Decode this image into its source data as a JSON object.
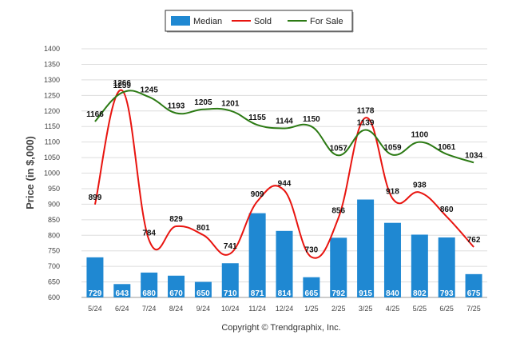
{
  "chart_data": {
    "type": "bar",
    "categories": [
      "5/24",
      "6/24",
      "7/24",
      "8/24",
      "9/24",
      "10/24",
      "11/24",
      "12/24",
      "1/25",
      "2/25",
      "3/25",
      "4/25",
      "5/25",
      "6/25",
      "7/25"
    ],
    "series": [
      {
        "name": "Median",
        "kind": "bar",
        "color": "#1f88d2",
        "values": [
          729,
          643,
          680,
          670,
          650,
          710,
          871,
          814,
          665,
          792,
          915,
          840,
          802,
          793,
          675
        ]
      },
      {
        "name": "Sold",
        "kind": "line",
        "color": "#e8140f",
        "values": [
          899,
          1266,
          784,
          829,
          801,
          741,
          909,
          944,
          730,
          856,
          1178,
          918,
          938,
          860,
          762
        ]
      },
      {
        "name": "For Sale",
        "kind": "line",
        "color": "#2c7a14",
        "values": [
          1166,
          1259,
          1245,
          1193,
          1205,
          1201,
          1155,
          1144,
          1150,
          1057,
          1139,
          1059,
          1100,
          1061,
          1034
        ]
      }
    ],
    "ylabel": "Price (in $,000)",
    "ylim": [
      600,
      1400
    ],
    "yticks": [
      600,
      650,
      700,
      750,
      800,
      850,
      900,
      950,
      1000,
      1050,
      1100,
      1150,
      1200,
      1250,
      1300,
      1350,
      1400
    ],
    "grid": true,
    "legend_position": "top-center"
  },
  "credit": "Copyright © Trendgraphix, Inc."
}
